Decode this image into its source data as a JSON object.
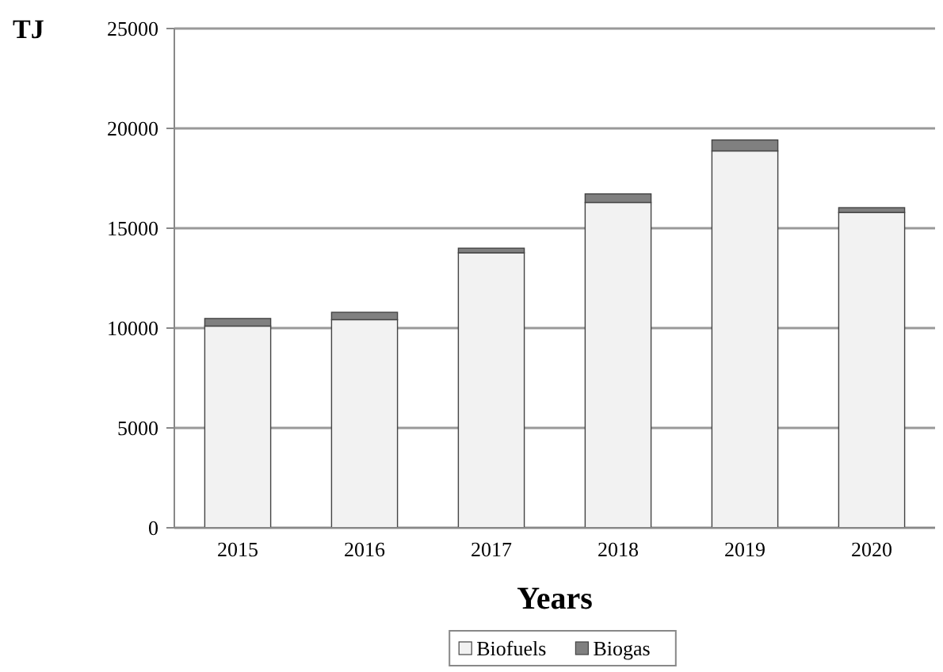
{
  "chart_data": {
    "type": "bar",
    "ylabel": "TJ",
    "xlabel": "Years",
    "categories": [
      "2015",
      "2016",
      "2017",
      "2018",
      "2019",
      "2020"
    ],
    "stacked": true,
    "series": [
      {
        "name": "Biofuels",
        "color": "#f2f2f2",
        "values": [
          10100,
          10420,
          13770,
          16290,
          18870,
          15790
        ]
      },
      {
        "name": "Biogas",
        "color": "#808080",
        "values": [
          380,
          370,
          230,
          430,
          550,
          240
        ]
      }
    ],
    "ylim": [
      0,
      25000
    ],
    "yticks": [
      0,
      5000,
      10000,
      15000,
      20000,
      25000
    ],
    "grid": "y",
    "legend": "bottom"
  }
}
